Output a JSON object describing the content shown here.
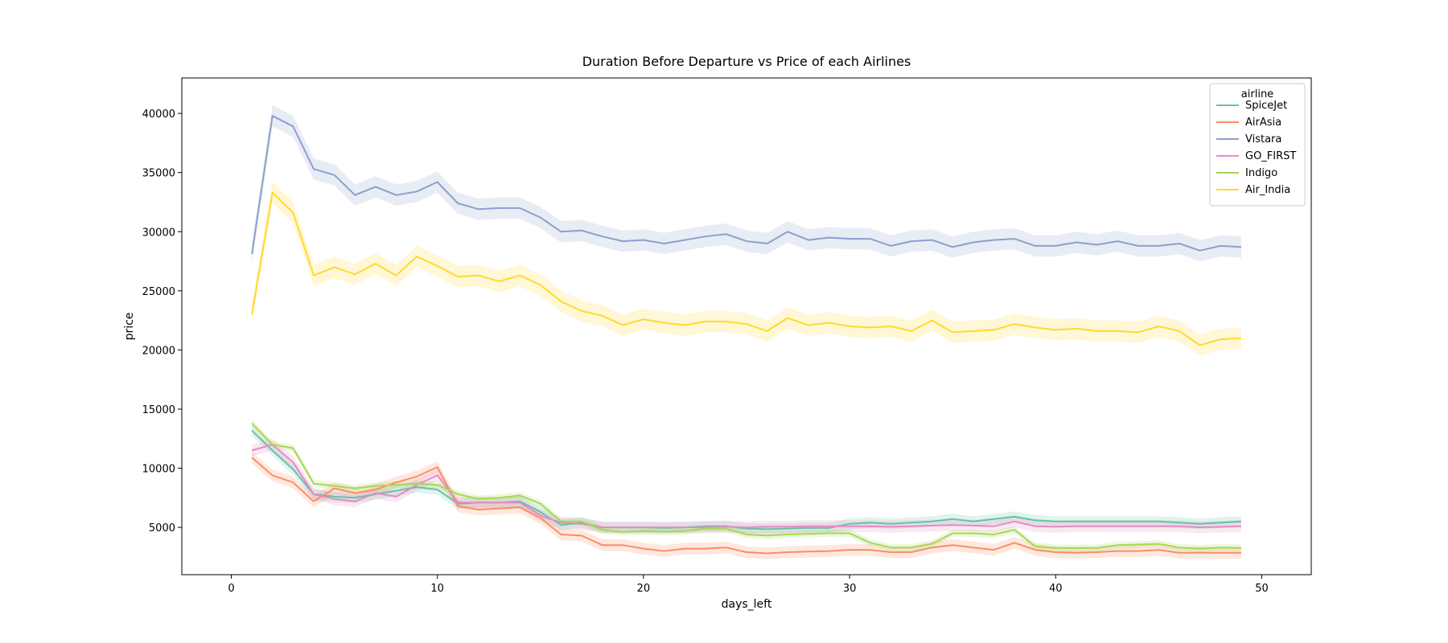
{
  "chart_data": {
    "type": "line",
    "title": "Duration Before Departure vs Price of each Airlines",
    "xlabel": "days_left",
    "ylabel": "price",
    "xlim": [
      -2.4,
      52.4
    ],
    "ylim": [
      1000,
      43000
    ],
    "xticks": [
      0,
      10,
      20,
      30,
      40,
      50
    ],
    "yticks": [
      5000,
      10000,
      15000,
      20000,
      25000,
      30000,
      35000,
      40000
    ],
    "grid": false,
    "legend": {
      "title": "airline",
      "placement": "top-right"
    },
    "x": [
      1,
      2,
      3,
      4,
      5,
      6,
      7,
      8,
      9,
      10,
      11,
      12,
      13,
      14,
      15,
      16,
      17,
      18,
      19,
      20,
      21,
      22,
      23,
      24,
      25,
      26,
      27,
      28,
      29,
      30,
      31,
      32,
      33,
      34,
      35,
      36,
      37,
      38,
      39,
      40,
      41,
      42,
      43,
      44,
      45,
      46,
      47,
      48,
      49
    ],
    "series": [
      {
        "name": "SpiceJet",
        "color": "#66c2a5",
        "band": 450,
        "values": [
          13200,
          11500,
          9900,
          7800,
          7600,
          7500,
          7800,
          8100,
          8400,
          8200,
          7000,
          7100,
          7100,
          7200,
          6300,
          5200,
          5400,
          5000,
          5000,
          5000,
          4950,
          5000,
          5100,
          5100,
          4900,
          4850,
          4900,
          4950,
          4950,
          5300,
          5400,
          5300,
          5400,
          5500,
          5700,
          5500,
          5700,
          5900,
          5600,
          5500,
          5500,
          5500,
          5500,
          5500,
          5500,
          5400,
          5300,
          5400,
          5500
        ]
      },
      {
        "name": "AirAsia",
        "color": "#fc8d62",
        "band": 500,
        "values": [
          10900,
          9400,
          8800,
          7200,
          8300,
          7900,
          8200,
          8800,
          9300,
          10100,
          6800,
          6500,
          6600,
          6700,
          5800,
          4400,
          4300,
          3500,
          3500,
          3200,
          3000,
          3200,
          3200,
          3300,
          2900,
          2800,
          2900,
          2950,
          3000,
          3100,
          3100,
          2900,
          2900,
          3300,
          3500,
          3300,
          3100,
          3700,
          3100,
          2900,
          2850,
          2900,
          3000,
          3000,
          3100,
          2850,
          2850,
          2850,
          2850
        ]
      },
      {
        "name": "Vistara",
        "color": "#8da0cb",
        "band": 900,
        "values": [
          28100,
          39800,
          38900,
          35300,
          34800,
          33100,
          33800,
          33100,
          33400,
          34200,
          32400,
          31900,
          32000,
          32000,
          31200,
          30000,
          30100,
          29600,
          29200,
          29300,
          29000,
          29300,
          29600,
          29800,
          29200,
          29000,
          30000,
          29300,
          29500,
          29400,
          29400,
          28800,
          29200,
          29300,
          28700,
          29100,
          29300,
          29400,
          28800,
          28800,
          29100,
          28900,
          29200,
          28800,
          28800,
          29000,
          28400,
          28800,
          28700
        ]
      },
      {
        "name": "GO_FIRST",
        "color": "#e78ac3",
        "band": 500,
        "values": [
          11500,
          12000,
          10500,
          7800,
          7400,
          7200,
          7900,
          7600,
          8600,
          9400,
          7100,
          7100,
          7100,
          7100,
          6000,
          5400,
          5300,
          5000,
          5000,
          5000,
          5000,
          5000,
          5000,
          5050,
          5000,
          5050,
          5050,
          5100,
          5100,
          5100,
          5100,
          5050,
          5100,
          5150,
          5200,
          5150,
          5100,
          5500,
          5100,
          5050,
          5100,
          5100,
          5100,
          5100,
          5100,
          5100,
          5000,
          5050,
          5100
        ]
      },
      {
        "name": "Indigo",
        "color": "#a6d854",
        "band": 300,
        "values": [
          13800,
          12000,
          11700,
          8700,
          8500,
          8300,
          8500,
          8600,
          8700,
          8600,
          7800,
          7400,
          7500,
          7700,
          7000,
          5500,
          5500,
          4800,
          4600,
          4700,
          4650,
          4700,
          4900,
          4900,
          4400,
          4300,
          4400,
          4450,
          4500,
          4500,
          3700,
          3300,
          3300,
          3600,
          4500,
          4500,
          4400,
          4800,
          3400,
          3250,
          3250,
          3250,
          3500,
          3550,
          3600,
          3300,
          3200,
          3300,
          3250
        ]
      },
      {
        "name": "Air_India",
        "color": "#ffd92f",
        "band": 900,
        "values": [
          23000,
          33300,
          31600,
          26300,
          27000,
          26400,
          27300,
          26300,
          27900,
          27100,
          26200,
          26300,
          25800,
          26300,
          25500,
          24100,
          23300,
          22900,
          22100,
          22600,
          22300,
          22100,
          22400,
          22400,
          22200,
          21600,
          22700,
          22100,
          22300,
          22000,
          21900,
          22000,
          21600,
          22500,
          21500,
          21600,
          21700,
          22200,
          21900,
          21700,
          21800,
          21600,
          21600,
          21500,
          22000,
          21600,
          20400,
          20900,
          21000
        ]
      }
    ]
  }
}
